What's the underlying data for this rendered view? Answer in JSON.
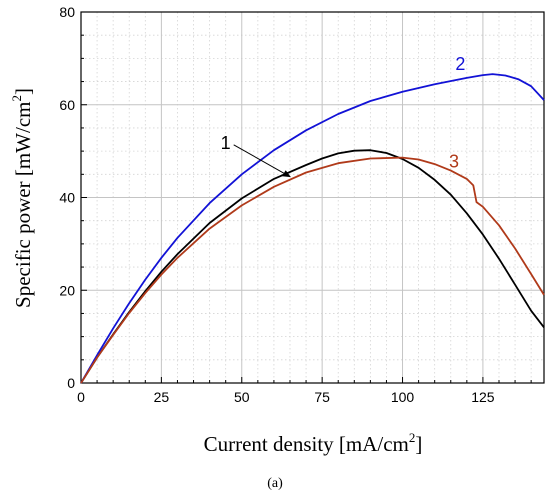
{
  "chart_data": {
    "type": "line",
    "title": "",
    "xlabel": "Current density [mA/cm",
    "xlabel_sup": "2",
    "xlabel_close": "]",
    "ylabel": "Specific power [mW/cm",
    "ylabel_sup": "2",
    "ylabel_close": "]",
    "xlim": [
      0,
      144
    ],
    "ylim": [
      0,
      80
    ],
    "xticks": [
      0,
      25,
      50,
      75,
      100,
      125
    ],
    "yticks": [
      0,
      20,
      40,
      60,
      80
    ],
    "grid": true,
    "caption": "(a)",
    "series": [
      {
        "label": "1",
        "color": "#000000",
        "x": [
          0,
          5,
          10,
          15,
          20,
          25,
          30,
          40,
          50,
          60,
          70,
          75,
          80,
          85,
          90,
          95,
          100,
          105,
          110,
          115,
          120,
          125,
          130,
          135,
          140,
          144
        ],
        "y": [
          0,
          5.5,
          10.5,
          15.3,
          19.8,
          24.0,
          27.8,
          34.5,
          39.8,
          44.0,
          47.0,
          48.4,
          49.5,
          50.1,
          50.2,
          49.6,
          48.3,
          46.4,
          43.8,
          40.6,
          36.6,
          32.0,
          26.8,
          21.2,
          15.6,
          12.0
        ]
      },
      {
        "label": "2",
        "color": "#1212d6",
        "x": [
          0,
          5,
          10,
          15,
          20,
          25,
          30,
          40,
          50,
          60,
          70,
          80,
          90,
          100,
          110,
          120,
          125,
          128,
          132,
          136,
          140,
          144
        ],
        "y": [
          0,
          6.0,
          11.8,
          17.2,
          22.3,
          27.0,
          31.3,
          38.8,
          45.0,
          50.2,
          54.5,
          58.0,
          60.8,
          62.8,
          64.4,
          65.8,
          66.4,
          66.6,
          66.3,
          65.5,
          64.0,
          61.0
        ]
      },
      {
        "label": "3",
        "color": "#b03a1a",
        "x": [
          0,
          5,
          10,
          15,
          20,
          25,
          30,
          40,
          50,
          60,
          70,
          80,
          90,
          100,
          105,
          110,
          115,
          120,
          122,
          123,
          125,
          130,
          135,
          140,
          144
        ],
        "y": [
          0,
          5.5,
          10.4,
          15.1,
          19.4,
          23.4,
          27.0,
          33.3,
          38.3,
          42.3,
          45.4,
          47.4,
          48.4,
          48.6,
          48.2,
          47.2,
          45.8,
          44.0,
          42.6,
          39.0,
          38.0,
          34.0,
          29.0,
          23.5,
          19.0
        ]
      }
    ],
    "annotations": [
      {
        "text": "1",
        "color": "#000000",
        "at": [
          45,
          50.5
        ],
        "arrow_to": [
          65,
          44.5
        ]
      },
      {
        "text": "2",
        "color": "#1212d6",
        "at": [
          118,
          67.5
        ],
        "arrow_to": null
      },
      {
        "text": "3",
        "color": "#b03a1a",
        "at": [
          116,
          46.5
        ],
        "arrow_to": null
      }
    ]
  }
}
